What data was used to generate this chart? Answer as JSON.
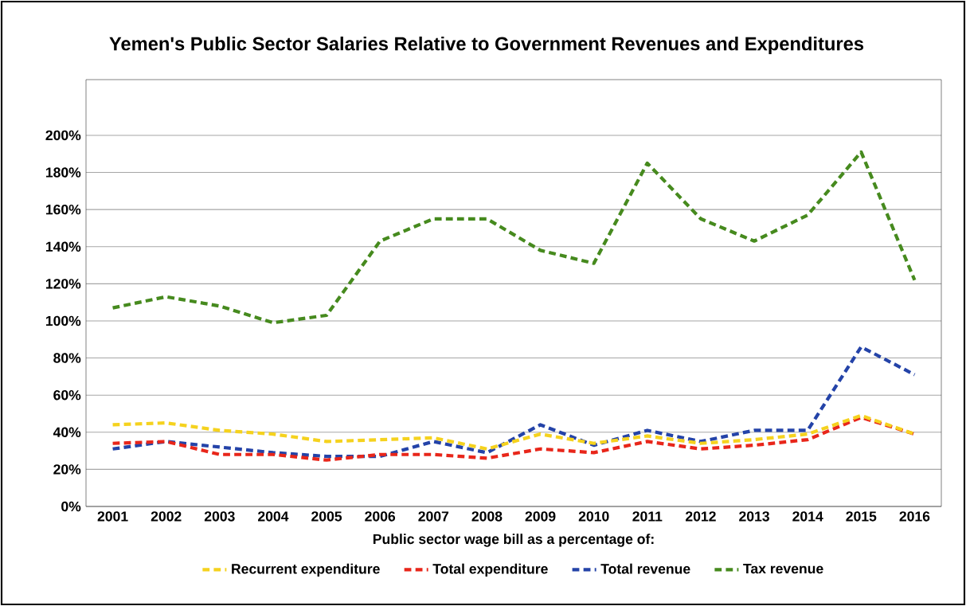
{
  "chart_data": {
    "type": "line",
    "title": "Yemen's Public Sector Salaries Relative to Government Revenues and Expenditures",
    "xlabel": "Public sector wage bill as a percentage of:",
    "categories": [
      "2001",
      "2002",
      "2003",
      "2004",
      "2005",
      "2006",
      "2007",
      "2008",
      "2009",
      "2010",
      "2011",
      "2012",
      "2013",
      "2014",
      "2015",
      "2016"
    ],
    "series": [
      {
        "name": "Recurrent expenditure",
        "color": "#f5d21e",
        "values": [
          44,
          45,
          41,
          39,
          35,
          36,
          37,
          31,
          39,
          34,
          38,
          34,
          36,
          39,
          49,
          39
        ]
      },
      {
        "name": "Total expenditure",
        "color": "#e8261a",
        "values": [
          34,
          35,
          28,
          28,
          25,
          28,
          28,
          26,
          31,
          29,
          35,
          31,
          33,
          36,
          48,
          39
        ]
      },
      {
        "name": "Total revenue",
        "color": "#2443a8",
        "values": [
          31,
          35,
          32,
          29,
          27,
          27,
          35,
          29,
          44,
          33,
          41,
          35,
          41,
          41,
          86,
          71
        ]
      },
      {
        "name": "Tax revenue",
        "color": "#468a1e",
        "values": [
          107,
          113,
          108,
          99,
          103,
          143,
          155,
          155,
          138,
          131,
          185,
          155,
          143,
          157,
          191,
          122
        ]
      }
    ],
    "ylim": [
      0,
      230
    ],
    "yticks": [
      {
        "value": 0,
        "label": "0%"
      },
      {
        "value": 20,
        "label": "20%"
      },
      {
        "value": 40,
        "label": "40%"
      },
      {
        "value": 60,
        "label": "60%"
      },
      {
        "value": 80,
        "label": "80%"
      },
      {
        "value": 100,
        "label": "100%"
      },
      {
        "value": 120,
        "label": "120%"
      },
      {
        "value": 140,
        "label": "140%"
      },
      {
        "value": 160,
        "label": "160%"
      },
      {
        "value": 180,
        "label": "180%"
      },
      {
        "value": 200,
        "label": "200%"
      }
    ],
    "grid": "y",
    "legend": "bottom",
    "line_style": "dashed",
    "marker": "none"
  }
}
